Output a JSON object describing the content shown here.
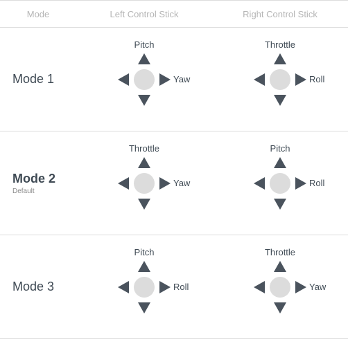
{
  "header": {
    "mode": "Mode",
    "left": "Left Control Stick",
    "right": "Right Control Stick"
  },
  "colors": {
    "arrow": "#4a535d",
    "dot": "#dcdcdc",
    "divider": "#dcdcdc",
    "header_text": "#b5b5b5",
    "text": "#3f4a54"
  },
  "rows": [
    {
      "name": "Mode 1",
      "bold": false,
      "subtext": "",
      "left_top": "Pitch",
      "left_right": "Yaw",
      "right_top": "Throttle",
      "right_right": "Roll"
    },
    {
      "name": "Mode 2",
      "bold": true,
      "subtext": "Default",
      "left_top": "Throttle",
      "left_right": "Yaw",
      "right_top": "Pitch",
      "right_right": "Roll"
    },
    {
      "name": "Mode 3",
      "bold": false,
      "subtext": "",
      "left_top": "Pitch",
      "left_right": "Roll",
      "right_top": "Throttle",
      "right_right": "Yaw"
    }
  ]
}
